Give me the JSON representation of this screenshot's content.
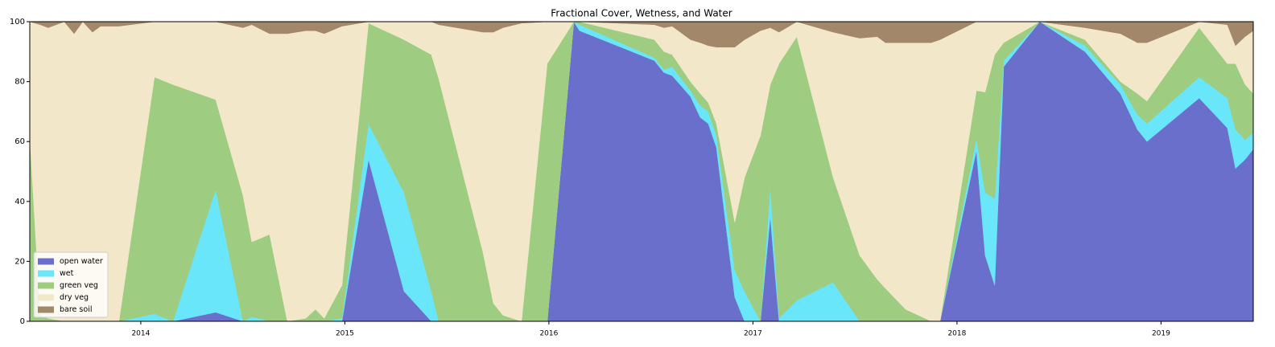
{
  "chart_data": {
    "type": "stacked_area",
    "title": "Fractional Cover, Wetness, and Water",
    "x": [
      2013.456,
      2013.507,
      2013.546,
      2013.625,
      2013.673,
      2013.716,
      2013.763,
      2013.803,
      2013.893,
      2014.067,
      2014.158,
      2014.367,
      2014.501,
      2014.544,
      2014.631,
      2014.718,
      2014.809,
      2014.856,
      2014.899,
      2014.986,
      2015.116,
      2015.29,
      2015.424,
      2015.46,
      2015.677,
      2015.728,
      2015.775,
      2015.866,
      2015.992,
      2016.122,
      2016.15,
      2016.517,
      2016.564,
      2016.604,
      2016.694,
      2016.742,
      2016.781,
      2016.821,
      2016.911,
      2016.959,
      2017.037,
      2017.085,
      2017.128,
      2017.215,
      2017.393,
      2017.523,
      2017.609,
      2017.649,
      2017.748,
      2017.874,
      2017.917,
      2018.095,
      2018.138,
      2018.185,
      2018.229,
      2018.406,
      2018.627,
      2018.801,
      2018.884,
      2018.931,
      2019.187,
      2019.325,
      2019.365,
      2019.412,
      2019.452
    ],
    "series": [
      {
        "name": "open water",
        "color": "#6a6fcb",
        "values": [
          0,
          0,
          0,
          0,
          0,
          0,
          0,
          0,
          0,
          0,
          0,
          3,
          0,
          0,
          0,
          0,
          0,
          0,
          0,
          0,
          54,
          10,
          0,
          0,
          0,
          0,
          0,
          0,
          0,
          100,
          97,
          87,
          83,
          82,
          75,
          68,
          66,
          58,
          8,
          0,
          0,
          35,
          0,
          0,
          0,
          0,
          0,
          0,
          0,
          0,
          0,
          57,
          22,
          12,
          85,
          100,
          90,
          76,
          64,
          60,
          74.5,
          64.5,
          51,
          54,
          57.5
        ]
      },
      {
        "name": "wet",
        "color": "#6ae6fb",
        "values": [
          0,
          0,
          0,
          0,
          0,
          0,
          0,
          0,
          0,
          2.5,
          0,
          41,
          0,
          1.5,
          0,
          0,
          0,
          0,
          0,
          1,
          12,
          33,
          10,
          0,
          0,
          0,
          0,
          0,
          0,
          0,
          2,
          1,
          1,
          3,
          2,
          4,
          4,
          4,
          9,
          10,
          0,
          10,
          1,
          7,
          13,
          0,
          0,
          0,
          0,
          0,
          0,
          4,
          21,
          29,
          2,
          0,
          2,
          3,
          5,
          6,
          7,
          10,
          13,
          6.5,
          5.5
        ]
      },
      {
        "name": "green veg",
        "color": "#9ecd81",
        "values": [
          62,
          2,
          1,
          0,
          0,
          0,
          0,
          0,
          0,
          79,
          79,
          30,
          42,
          25,
          29,
          0,
          1,
          4,
          1,
          11,
          33.5,
          51,
          79,
          81,
          23,
          6,
          2,
          0,
          86,
          0,
          1,
          6,
          6,
          4,
          3,
          4,
          3,
          4,
          16,
          38,
          62,
          34,
          85,
          88,
          35,
          22,
          14,
          11,
          4,
          0,
          0,
          16,
          33.5,
          48,
          6,
          0,
          2,
          1,
          7,
          7.5,
          16.5,
          11.5,
          22,
          18.5,
          13
        ]
      },
      {
        "name": "dry veg",
        "color": "#f2e7c9",
        "values": [
          38,
          97,
          97,
          100,
          96,
          100,
          96.5,
          98.5,
          98.5,
          18.5,
          21,
          26,
          56,
          72.5,
          67,
          96,
          96,
          93,
          95,
          86.5,
          0.5,
          6,
          11,
          18,
          73.5,
          90.5,
          96,
          99.5,
          14,
          0,
          0,
          5,
          8,
          9.5,
          14,
          17,
          19,
          25.5,
          58.5,
          46,
          35,
          19,
          10.5,
          5,
          48.5,
          72.5,
          81,
          82,
          89,
          93,
          94,
          23,
          23.5,
          11,
          7,
          0,
          4,
          16,
          17,
          19.5,
          2,
          13,
          6,
          16,
          21
        ]
      },
      {
        "name": "bare soil",
        "color": "#a3876a",
        "values": [
          0,
          1,
          2,
          0,
          4,
          0,
          3.5,
          1.5,
          1.5,
          0,
          0,
          0,
          2,
          1,
          4,
          4,
          3,
          3,
          4,
          1.5,
          0,
          0,
          0,
          1,
          3.5,
          3.5,
          2,
          0.5,
          0,
          0,
          0,
          1,
          2,
          1.5,
          6,
          7,
          8,
          8.5,
          8.5,
          6,
          3,
          2,
          3.5,
          0,
          3.5,
          5.5,
          5,
          7,
          7,
          7,
          6,
          0,
          0,
          0,
          0,
          0,
          2,
          4,
          7,
          7,
          0,
          1,
          8,
          5,
          3
        ]
      }
    ],
    "xlim": [
      2013.456,
      2019.452
    ],
    "xticks": [
      2014,
      2015,
      2016,
      2017,
      2018,
      2019
    ],
    "ylim": [
      0,
      100
    ],
    "yticks": [
      0,
      20,
      40,
      60,
      80,
      100
    ],
    "legend": "lower left"
  }
}
